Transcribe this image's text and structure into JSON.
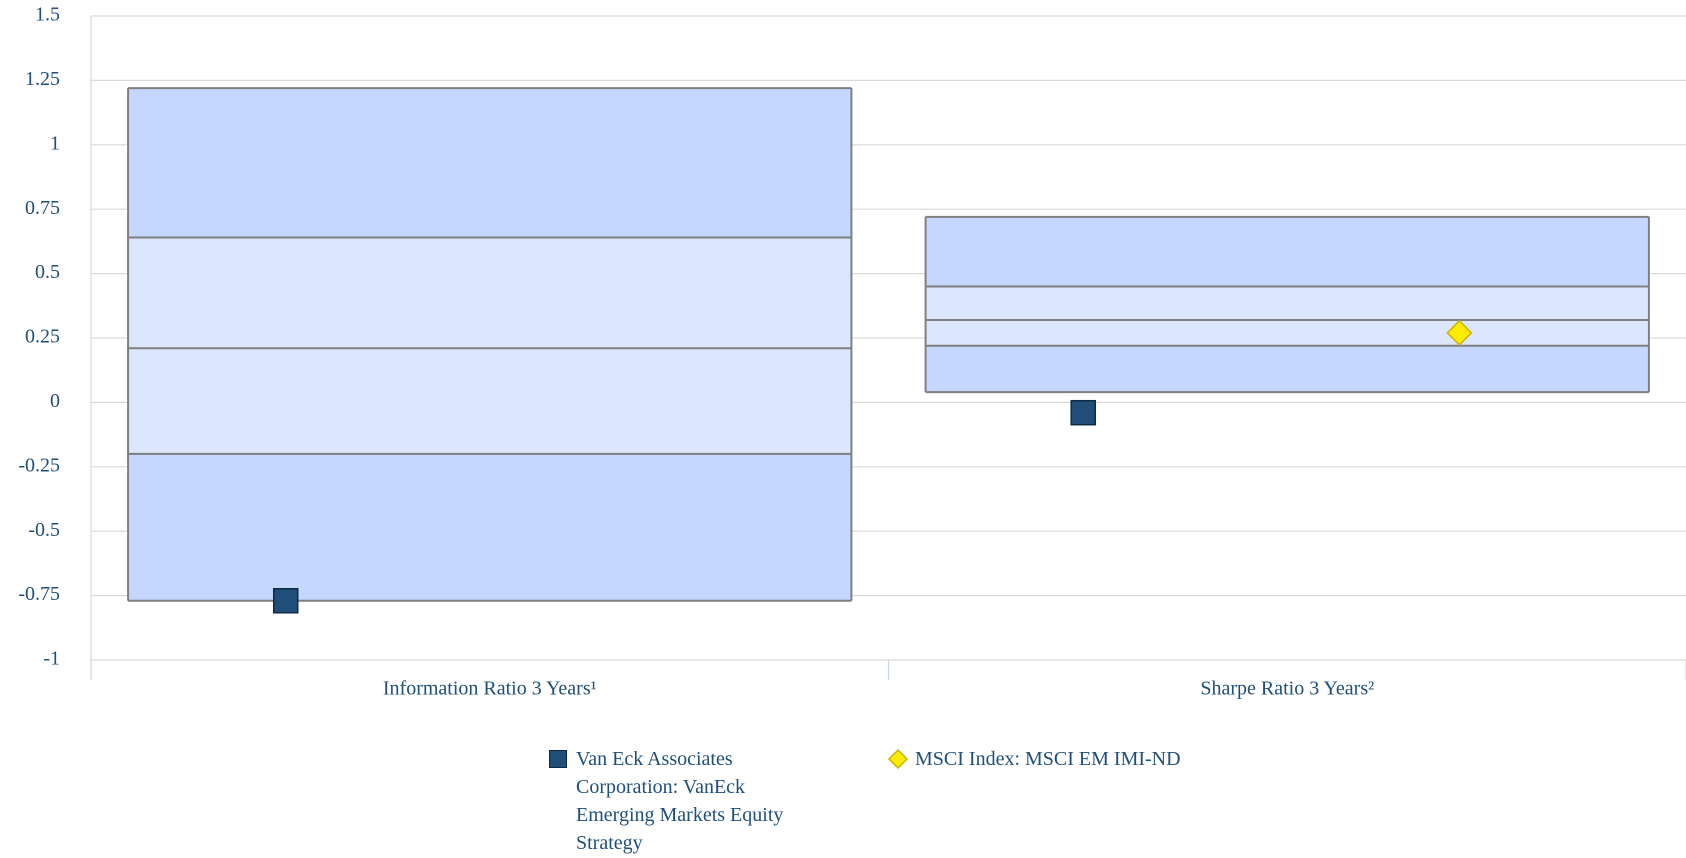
{
  "chart_data": {
    "type": "range-band",
    "categories": [
      "Information Ratio 3 Years¹",
      "Sharpe Ratio 3 Years²"
    ],
    "boxes": [
      {
        "low": -0.77,
        "q1": -0.2,
        "median": 0.21,
        "q3": 0.64,
        "high": 1.22
      },
      {
        "low": 0.04,
        "q1": 0.22,
        "median": 0.32,
        "q3": 0.45,
        "high": 0.72
      }
    ],
    "outer_color": "#c5d7fe",
    "inner_color": "#dce6fe",
    "series": [
      {
        "name": "Van Eck Associates Corporation: VanEck Emerging Markets Equity Strategy",
        "color": "#1f4e79",
        "marker": "square",
        "values": [
          -0.77,
          -0.04
        ]
      },
      {
        "name": "MSCI Index: MSCI EM IMI-ND",
        "color": "#ffeb00",
        "marker": "diamond",
        "values": [
          null,
          0.27
        ]
      }
    ],
    "ylim": [
      -1,
      1.5
    ],
    "yticks": [
      1.5,
      1.25,
      1,
      0.75,
      0.5,
      0.25,
      0,
      -0.25,
      -0.5,
      -0.75,
      -1
    ],
    "grid": true
  }
}
